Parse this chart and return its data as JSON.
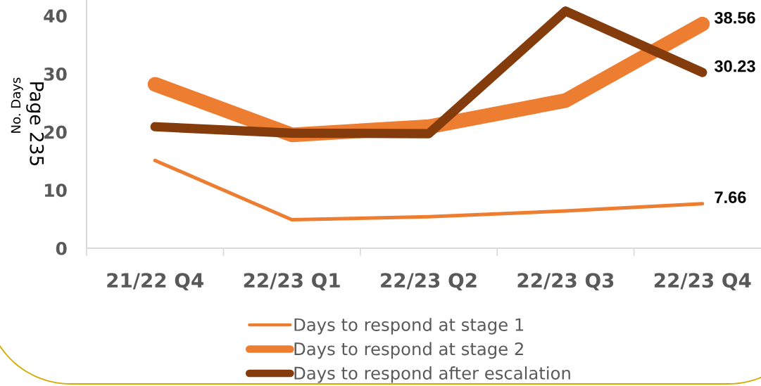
{
  "chart_data": {
    "type": "line",
    "ylabel": "No. Days",
    "annotations": [
      "Page 235"
    ],
    "categories": [
      "21/22 Q4",
      "22/23 Q1",
      "22/23 Q2",
      "22/23 Q3",
      "22/23 Q4"
    ],
    "series": [
      {
        "name": "Days to respond at stage 1",
        "color": "#ed7d31",
        "values": [
          15.1,
          4.9,
          5.4,
          6.4,
          7.66
        ],
        "value_labels": [
          null,
          null,
          null,
          null,
          "7.66"
        ]
      },
      {
        "name": "Days to respond at stage 2",
        "color": "#ed7d31",
        "values": [
          28.2,
          19.5,
          20.9,
          25.4,
          38.56
        ],
        "value_labels": [
          null,
          null,
          null,
          null,
          "38.56"
        ]
      },
      {
        "name": "Days to respond after escalation",
        "color": "#843c0c",
        "values": [
          20.9,
          19.8,
          19.7,
          40.8,
          30.23
        ],
        "value_labels": [
          null,
          null,
          null,
          null,
          "30.23"
        ]
      }
    ],
    "ylim": [
      0,
      42.7
    ],
    "yticks": [
      0,
      10,
      20,
      30,
      40
    ],
    "grid": false,
    "legend": "bottom",
    "marker": "none",
    "line_style": "solid"
  }
}
